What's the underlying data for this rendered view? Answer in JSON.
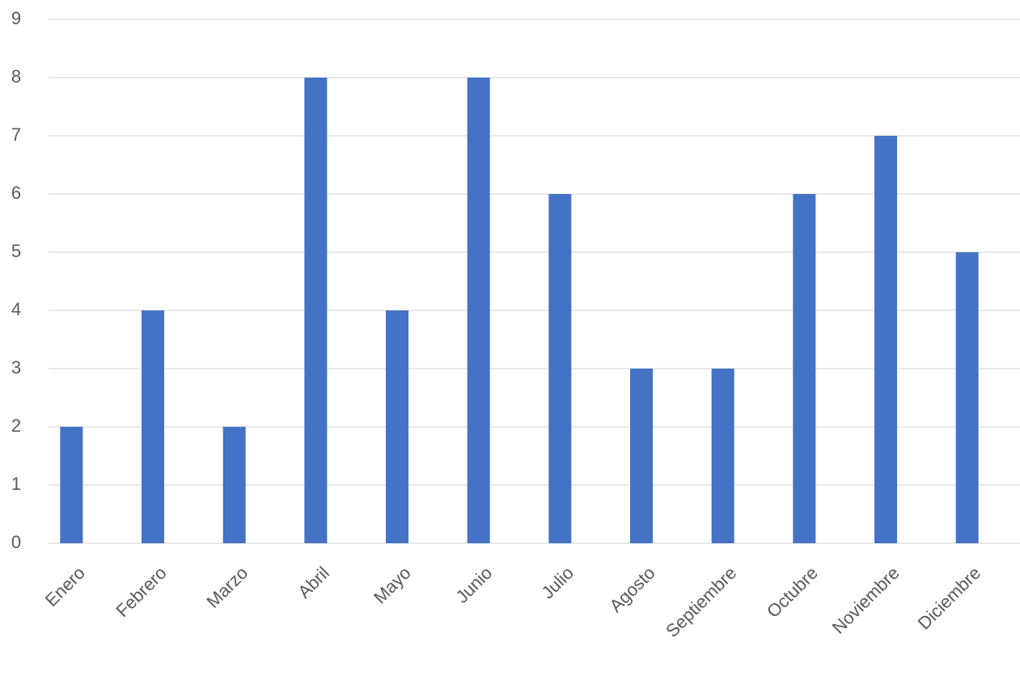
{
  "chart_data": {
    "type": "bar",
    "categories": [
      "Enero",
      "Febrero",
      "Marzo",
      "Abril",
      "Mayo",
      "Junio",
      "Julio",
      "Agosto",
      "Septiembre",
      "Octubre",
      "Noviembre",
      "Diciembre"
    ],
    "values": [
      2,
      4,
      2,
      8,
      4,
      8,
      6,
      3,
      3,
      6,
      7,
      5
    ],
    "color": "#4472c4",
    "ylim": [
      0,
      9
    ],
    "yticks": [
      0,
      1,
      2,
      3,
      4,
      5,
      6,
      7,
      8,
      9
    ],
    "grid": true
  }
}
